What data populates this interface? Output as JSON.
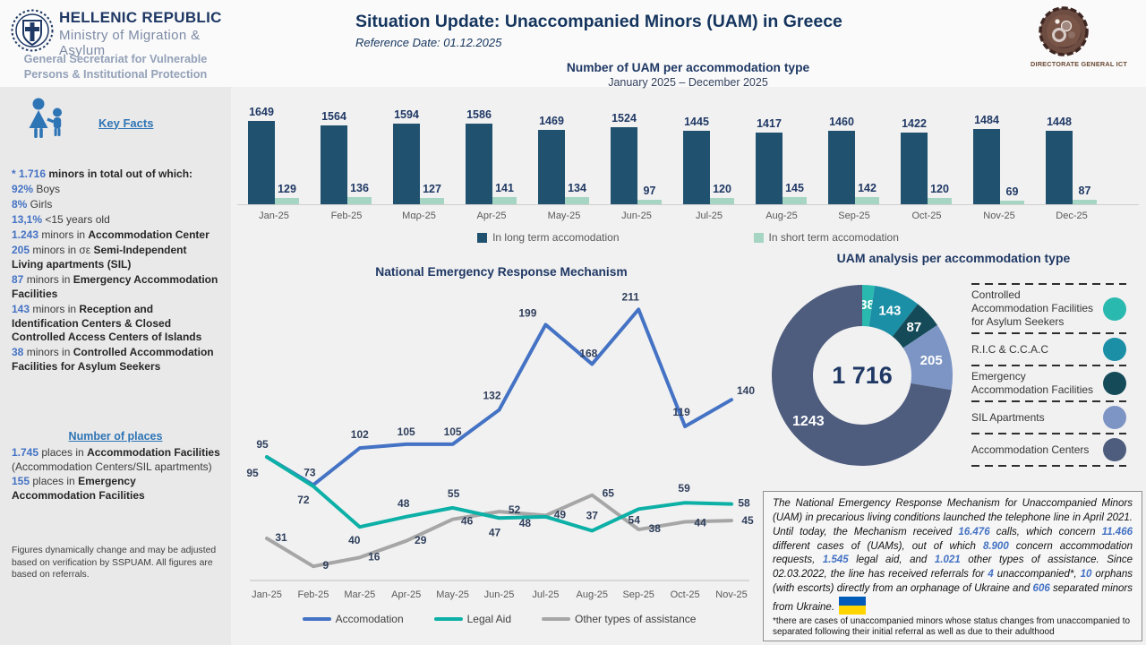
{
  "header": {
    "republic": "HELLENIC REPUBLIC",
    "ministry": "Ministry of Migration & Asylum",
    "secretariat": "General Secretariat for Vulnerable Persons & Institutional Protection",
    "title": "Situation Update: Unaccompanied Minors (UAM) in Greece",
    "reference_date": "Reference Date: 01.12.2025",
    "ict_label": "DIRECTORATE GENERAL ICT"
  },
  "sidebar": {
    "key_facts_label": "Key Facts",
    "facts": [
      [
        {
          "t": "* 1.716",
          "s": "num"
        },
        {
          "t": " minors in total out of which:",
          "s": "bold"
        }
      ],
      [
        {
          "t": "92%",
          "s": "num"
        },
        {
          "t": " Boys",
          "s": "plain"
        }
      ],
      [
        {
          "t": "8%",
          "s": "num"
        },
        {
          "t": " Girls",
          "s": "plain"
        }
      ],
      [
        {
          "t": "13,1%",
          "s": "num"
        },
        {
          "t": " <15 years old",
          "s": "plain"
        }
      ],
      [
        {
          "t": "1.243",
          "s": "num"
        },
        {
          "t": " minors in ",
          "s": "plain"
        },
        {
          "t": "Accommodation Center",
          "s": "bold"
        }
      ],
      [
        {
          "t": "205",
          "s": "num"
        },
        {
          "t": " minors in σε ",
          "s": "plain"
        },
        {
          "t": "Semi-Independent Living apartments (SIL)",
          "s": "bold"
        }
      ],
      [
        {
          "t": "87",
          "s": "num"
        },
        {
          "t": " minors in ",
          "s": "plain"
        },
        {
          "t": "Emergency Accommodation Facilities",
          "s": "bold"
        }
      ],
      [
        {
          "t": "143",
          "s": "num"
        },
        {
          "t": " minors in ",
          "s": "plain"
        },
        {
          "t": "Reception and Identification Centers & Closed Controlled Access Centers of Islands",
          "s": "bold"
        }
      ],
      [
        {
          "t": "38",
          "s": "num"
        },
        {
          "t": " minors in ",
          "s": "plain"
        },
        {
          "t": "Controlled Accommodation Facilities for Asylum Seekers",
          "s": "bold"
        }
      ]
    ],
    "number_of_places_label": "Number of places",
    "places": [
      [
        {
          "t": "1.745",
          "s": "num"
        },
        {
          "t": " places in ",
          "s": "plain"
        },
        {
          "t": "Accommodation Facilities",
          "s": "bold"
        },
        {
          "t": " (Accommodation Centers/SIL apartments)",
          "s": "plain"
        }
      ],
      [
        {
          "t": "155",
          "s": "num"
        },
        {
          "t": " places in ",
          "s": "plain"
        },
        {
          "t": "Emergency Accommodation Facilities",
          "s": "bold"
        }
      ]
    ],
    "footnote": "Figures dynamically change and may be adjusted based on verification by SSPUAM. All figures are based on referrals."
  },
  "chart_data": [
    {
      "type": "bar",
      "title": "Number of UAM per accommodation type",
      "subtitle": "January 2025 – December 2025",
      "categories": [
        "Jan-25",
        "Feb-25",
        "Μαρ-25",
        "Apr-25",
        "May-25",
        "Jun-25",
        "Jul-25",
        "Aug-25",
        "Sep-25",
        "Oct-25",
        "Nov-25",
        "Dec-25"
      ],
      "series": [
        {
          "name": "In long term accomodation",
          "color": "#20516f",
          "values": [
            1649,
            1564,
            1594,
            1586,
            1469,
            1524,
            1445,
            1417,
            1460,
            1422,
            1484,
            1448
          ]
        },
        {
          "name": "In short term accomodation",
          "color": "#a6d6c3",
          "values": [
            129,
            136,
            127,
            141,
            134,
            97,
            120,
            145,
            142,
            120,
            69,
            87
          ]
        }
      ],
      "ylim": [
        0,
        1700
      ],
      "grid": false,
      "legend_position": "bottom"
    },
    {
      "type": "line",
      "title": "National Emergency Response Mechanism",
      "x": [
        "Jan-25",
        "Feb-25",
        "Mar-25",
        "Apr-25",
        "May-25",
        "Jun-25",
        "Jul-25",
        "Aug-25",
        "Sep-25",
        "Oct-25",
        "Nov-25"
      ],
      "series": [
        {
          "name": "Accomodation",
          "color": "#4472c4",
          "values": [
            95,
            73,
            102,
            105,
            105,
            132,
            199,
            168,
            211,
            119,
            140
          ]
        },
        {
          "name": "Legal Aid",
          "color": "#0cb0a6",
          "values": [
            95,
            72,
            40,
            48,
            55,
            47,
            48,
            37,
            54,
            59,
            58
          ]
        },
        {
          "name": "Other types of assistance",
          "color": "#a6a6a6",
          "values": [
            31,
            9,
            16,
            29,
            46,
            52,
            49,
            65,
            38,
            44,
            45
          ]
        }
      ],
      "ylim": [
        0,
        230
      ],
      "grid": false,
      "legend_position": "bottom"
    },
    {
      "type": "pie",
      "title": "UAM analysis per accommodation type",
      "center_label": "1 716",
      "slices": [
        {
          "label": "Controlled Accommodation Facilities for Asylum Seekers",
          "value": 38,
          "color": "#2ab9af"
        },
        {
          "label": "R.I.C & C.C.A.C",
          "value": 143,
          "color": "#1b8fa6"
        },
        {
          "label": "Emergency Accommodation Facilities",
          "value": 87,
          "color": "#154b59"
        },
        {
          "label": "SIL Apartments",
          "value": 205,
          "color": "#7d95c4"
        },
        {
          "label": "Accommodation Centers",
          "value": 1243,
          "color": "#4e5c7e"
        }
      ],
      "legend_position": "right"
    }
  ],
  "info_box": {
    "segments": [
      {
        "t": "The National Emergency Response Mechanism for Unaccompanied Minors (UAM) in precarious living conditions launched the telephone line in April 2021. Until today, the Mechanism received ",
        "s": "plain"
      },
      {
        "t": "16.476",
        "s": "num"
      },
      {
        "t": " calls, which concern ",
        "s": "plain"
      },
      {
        "t": "11.466",
        "s": "num"
      },
      {
        "t": " different cases of (UAMs), out of which ",
        "s": "plain"
      },
      {
        "t": "8.900",
        "s": "num"
      },
      {
        "t": " concern accommodation requests, ",
        "s": "plain"
      },
      {
        "t": "1.545",
        "s": "num"
      },
      {
        "t": " legal aid, and ",
        "s": "plain"
      },
      {
        "t": "1.021",
        "s": "num"
      },
      {
        "t": " other types of assistance. Since 02.03.2022, the line has received referrals for ",
        "s": "plain"
      },
      {
        "t": "4",
        "s": "num"
      },
      {
        "t": " unaccompanied*, ",
        "s": "plain"
      },
      {
        "t": "10",
        "s": "num"
      },
      {
        "t": " orphans (with escorts) directly from an orphanage of Ukraine and ",
        "s": "plain"
      },
      {
        "t": "606",
        "s": "num"
      },
      {
        "t": " separated minors from Ukraine.",
        "s": "plain"
      }
    ],
    "footnote": "*there are cases of unaccompanied minors whose status changes from unaccompanied to separated following their initial referral as well as due to their adulthood"
  },
  "colors": {
    "title_navy": "#1f3864",
    "number_blue": "#4472c4",
    "link_blue": "#2e74b5",
    "sidebar_bg": "#e9e9e9",
    "page_bg": "#f1f1f1",
    "ukraine_flag_blue": "#005bbb",
    "ukraine_flag_yellow": "#ffd500"
  }
}
